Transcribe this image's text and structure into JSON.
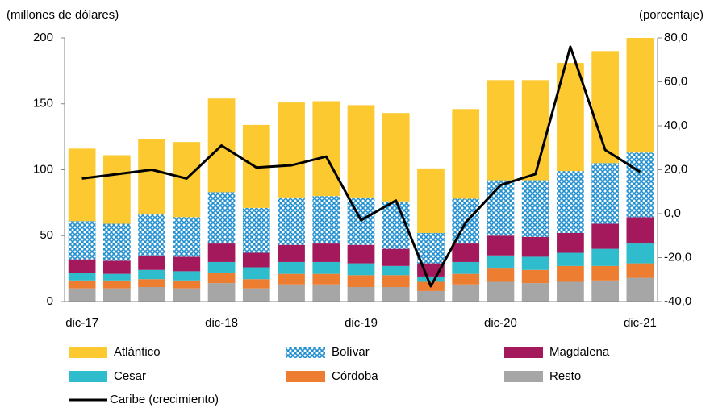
{
  "chart_data": {
    "type": "bar",
    "stacked": true,
    "y_label": "(millones de dólares)",
    "y2_label": "(porcentaje)",
    "categories": [
      "dic-17",
      null,
      null,
      null,
      "dic-18",
      null,
      null,
      null,
      "dic-19",
      null,
      null,
      null,
      "dic-20",
      null,
      null,
      null,
      "dic-21"
    ],
    "ylim": [
      0,
      200
    ],
    "yticks": [
      0,
      50,
      100,
      150,
      200
    ],
    "y2lim": [
      -40,
      80
    ],
    "y2ticks": [
      {
        "value": -40,
        "label": "-40,0"
      },
      {
        "value": -20,
        "label": "-20,0"
      },
      {
        "value": 0,
        "label": "0,0"
      },
      {
        "value": 20,
        "label": "20,0"
      },
      {
        "value": 40,
        "label": "40,0"
      },
      {
        "value": 60,
        "label": "60,0"
      },
      {
        "value": 80,
        "label": "80,0"
      }
    ],
    "series": [
      {
        "name": "Resto",
        "color": "#a6a6a6",
        "values": [
          10,
          10,
          11,
          10,
          14,
          10,
          13,
          13,
          11,
          11,
          8,
          13,
          15,
          14,
          15,
          16,
          18
        ]
      },
      {
        "name": "Córdoba",
        "color": "#ed7d31",
        "values": [
          6,
          6,
          6,
          6,
          8,
          7,
          8,
          8,
          9,
          9,
          7,
          8,
          10,
          10,
          12,
          11,
          11
        ]
      },
      {
        "name": "Cesar",
        "color": "#2fbccc",
        "values": [
          6,
          5,
          7,
          7,
          8,
          9,
          9,
          9,
          9,
          7,
          4,
          9,
          10,
          10,
          10,
          13,
          15
        ]
      },
      {
        "name": "Magdalena",
        "color": "#a3195b",
        "values": [
          10,
          10,
          11,
          11,
          14,
          11,
          13,
          14,
          14,
          13,
          10,
          14,
          15,
          15,
          15,
          19,
          20
        ]
      },
      {
        "name": "Bolívar",
        "color": "#1f8fcf",
        "pattern": "crosshatch",
        "values": [
          29,
          28,
          31,
          30,
          39,
          34,
          36,
          36,
          36,
          36,
          23,
          34,
          42,
          43,
          47,
          46,
          49
        ]
      },
      {
        "name": "Atlántico",
        "color": "#fcc931",
        "values": [
          55,
          52,
          57,
          57,
          71,
          63,
          72,
          72,
          70,
          67,
          49,
          68,
          76,
          76,
          82,
          85,
          87
        ]
      },
      {
        "name": "Caribe (crecimiento)",
        "color": "#000000",
        "type": "line",
        "axis": "y2",
        "values": [
          16,
          18,
          20,
          16,
          31,
          21,
          22,
          26,
          -3,
          6,
          -33,
          -4,
          13,
          18,
          76,
          29,
          19
        ]
      }
    ],
    "legend_order": [
      5,
      4,
      3,
      2,
      1,
      0,
      6
    ]
  }
}
